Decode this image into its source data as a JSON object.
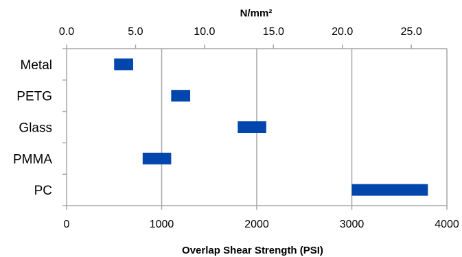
{
  "chart_data": {
    "type": "bar",
    "orientation": "horizontal-range",
    "categories": [
      "Metal",
      "PETG",
      "Glass",
      "PMMA",
      "PC"
    ],
    "ranges": [
      {
        "category": "Metal",
        "min": 500,
        "max": 700
      },
      {
        "category": "PETG",
        "min": 1100,
        "max": 1300
      },
      {
        "category": "Glass",
        "min": 1800,
        "max": 2100
      },
      {
        "category": "PMMA",
        "min": 800,
        "max": 1100
      },
      {
        "category": "PC",
        "min": 3000,
        "max": 3800
      }
    ],
    "xlabel": "Overlap Shear Strength (PSI)",
    "xlim": [
      0,
      4000
    ],
    "xticks": [
      "0",
      "1000",
      "2000",
      "3000",
      "4000"
    ],
    "x2label": "N/mm²",
    "x2lim": [
      0,
      27.58
    ],
    "x2ticks": [
      "0.0",
      "5.0",
      "10.0",
      "15.0",
      "20.0",
      "25.0"
    ],
    "grid": "vertical",
    "bar_color": "#0046AD",
    "grid_color": "#A6A6A6"
  }
}
